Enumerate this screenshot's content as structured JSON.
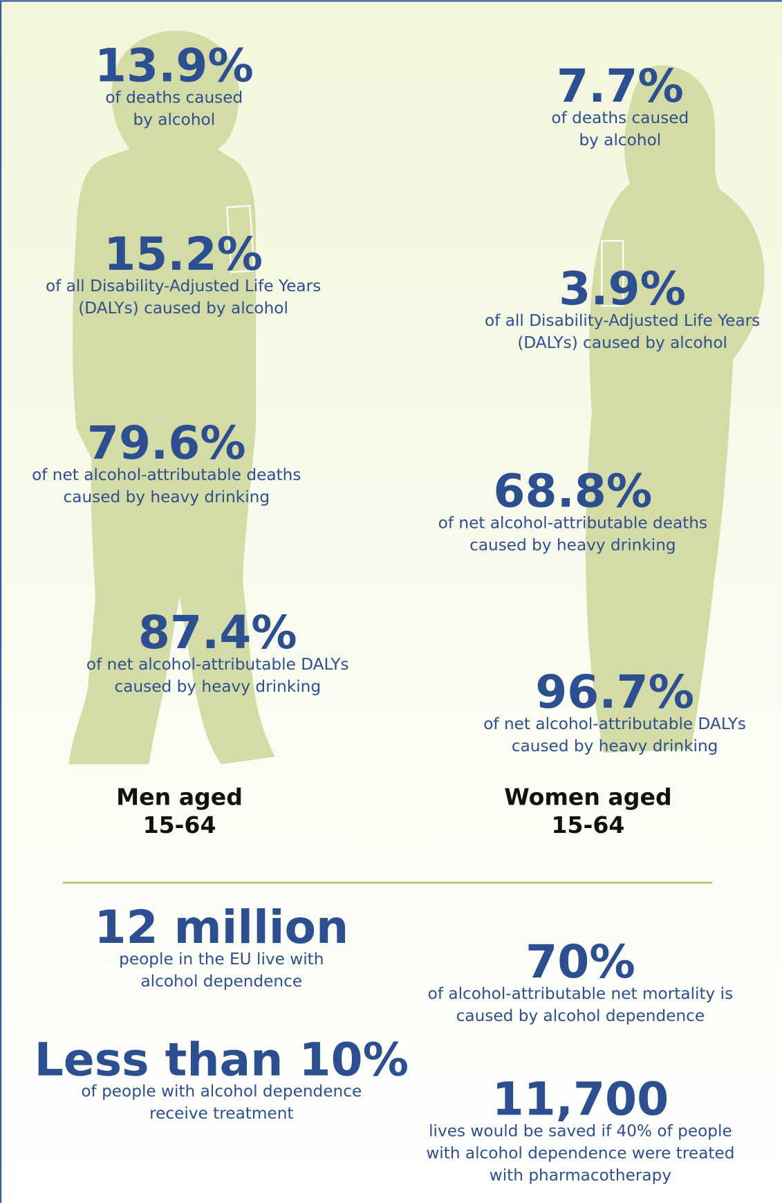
{
  "men": {
    "label": [
      "Men aged",
      "15-64"
    ],
    "stats": [
      {
        "value": "13.9%",
        "text": [
          "of deaths caused",
          "by alcohol"
        ]
      },
      {
        "value": "15.2%",
        "text": [
          "of all Disability-Adjusted Life Years",
          "(DALYs) caused by alcohol"
        ]
      },
      {
        "value": "79.6%",
        "text": [
          "of net alcohol-attributable deaths",
          "caused by heavy drinking"
        ]
      },
      {
        "value": "87.4%",
        "text": [
          "of net alcohol-attributable DALYs",
          "caused by heavy drinking"
        ]
      }
    ]
  },
  "women": {
    "label": [
      "Women aged",
      "15-64"
    ],
    "stats": [
      {
        "value": "7.7%",
        "text": [
          "of deaths caused",
          "by alcohol"
        ]
      },
      {
        "value": "3.9%",
        "text": [
          "of all Disability-Adjusted Life Years",
          "(DALYs) caused by alcohol"
        ]
      },
      {
        "value": "68.8%",
        "text": [
          "of net alcohol-attributable deaths",
          "caused by heavy drinking"
        ]
      },
      {
        "value": "96.7%",
        "text": [
          "of net alcohol-attributable DALYs",
          "caused by heavy drinking"
        ]
      }
    ]
  },
  "facts": [
    {
      "value": "12 million",
      "text": [
        "people in the EU live with",
        "alcohol dependence"
      ]
    },
    {
      "value": "70%",
      "text": [
        "of alcohol-attributable net mortality is",
        "caused by alcohol dependence"
      ]
    },
    {
      "value": "Less than 10%",
      "text": [
        "of people with alcohol dependence",
        "receive treatment"
      ]
    },
    {
      "value": "11,700",
      "text": [
        "lives would be saved if 40% of people",
        "with alcohol dependence were treated",
        "with pharmacotherapy"
      ]
    }
  ]
}
